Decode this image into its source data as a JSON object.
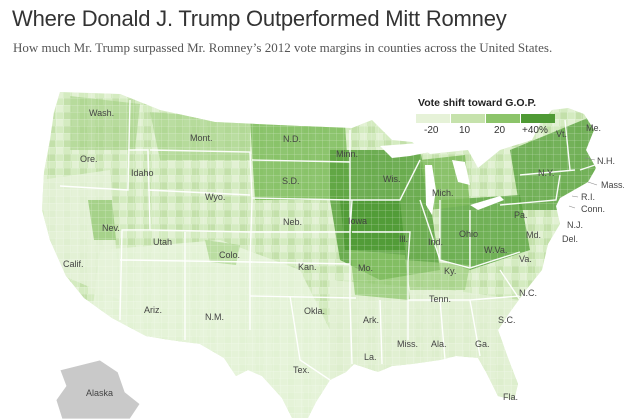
{
  "header": {
    "title": "Where Donald J. Trump Outperformed Mitt Romney",
    "subtitle": "How much Mr. Trump surpassed Mr. Romney’s 2012 vote margins in counties across the United States."
  },
  "legend": {
    "title": "Vote shift toward G.O.P.",
    "labels": [
      "-20",
      "10",
      "20",
      "+40%"
    ],
    "colors": [
      "#e6f2d8",
      "#c6e2ac",
      "#8cc46a",
      "#4f9a35"
    ]
  },
  "colors": {
    "land_base": "#d4ebc0",
    "land_light": "#e8f4dc",
    "land_mid": "#a9d48c",
    "land_dark": "#5aa23e",
    "water": "#ffffff",
    "border": "#ffffff",
    "canada_mexico": "#ffffff",
    "alaska": "#c9c9c9"
  },
  "states": [
    {
      "abbr": "Wash."
    },
    {
      "abbr": "Ore."
    },
    {
      "abbr": "Calif."
    },
    {
      "abbr": "Idaho"
    },
    {
      "abbr": "Nev."
    },
    {
      "abbr": "Mont."
    },
    {
      "abbr": "Wyo."
    },
    {
      "abbr": "Utah"
    },
    {
      "abbr": "Ariz."
    },
    {
      "abbr": "Colo."
    },
    {
      "abbr": "N.M."
    },
    {
      "abbr": "N.D."
    },
    {
      "abbr": "S.D."
    },
    {
      "abbr": "Neb."
    },
    {
      "abbr": "Kan."
    },
    {
      "abbr": "Okla."
    },
    {
      "abbr": "Tex."
    },
    {
      "abbr": "Minn."
    },
    {
      "abbr": "Iowa"
    },
    {
      "abbr": "Mo."
    },
    {
      "abbr": "Ark."
    },
    {
      "abbr": "La."
    },
    {
      "abbr": "Wis."
    },
    {
      "abbr": "Ill."
    },
    {
      "abbr": "Mich."
    },
    {
      "abbr": "Ind."
    },
    {
      "abbr": "Ohio"
    },
    {
      "abbr": "Ky."
    },
    {
      "abbr": "Tenn."
    },
    {
      "abbr": "Miss."
    },
    {
      "abbr": "Ala."
    },
    {
      "abbr": "Ga."
    },
    {
      "abbr": "Fla."
    },
    {
      "abbr": "S.C."
    },
    {
      "abbr": "N.C."
    },
    {
      "abbr": "Va."
    },
    {
      "abbr": "W.Va."
    },
    {
      "abbr": "Pa."
    },
    {
      "abbr": "Md."
    },
    {
      "abbr": "Del."
    },
    {
      "abbr": "N.J."
    },
    {
      "abbr": "N.Y."
    },
    {
      "abbr": "Conn."
    },
    {
      "abbr": "R.I."
    },
    {
      "abbr": "Mass."
    },
    {
      "abbr": "Vt."
    },
    {
      "abbr": "N.H."
    },
    {
      "abbr": "Me."
    },
    {
      "abbr": "Alaska"
    }
  ]
}
